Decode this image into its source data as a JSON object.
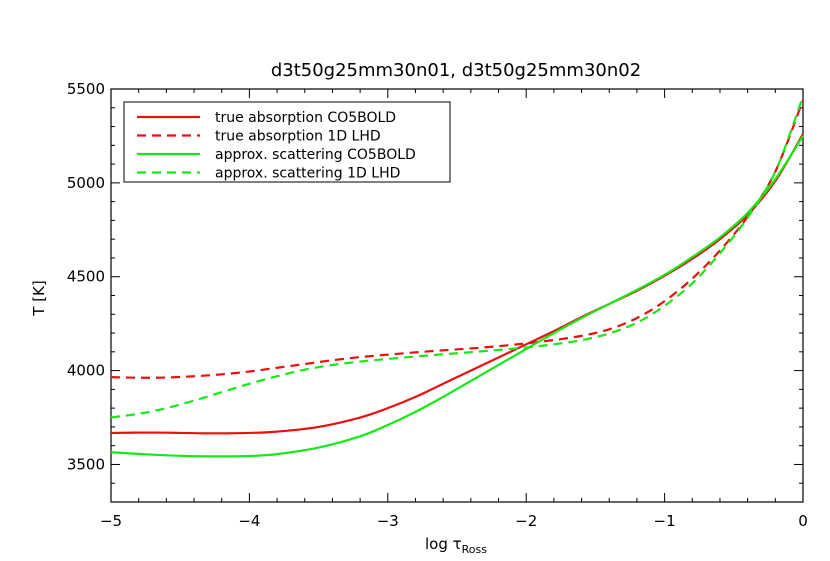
{
  "chart_data": {
    "type": "line",
    "title": "d3t50g25mm30n01, d3t50g25mm30n02",
    "xlabel": "log τ",
    "xlabel_sub": "Ross",
    "ylabel": "T [K]",
    "xlim": [
      -5,
      0
    ],
    "ylim": [
      3300,
      5500
    ],
    "xticks": [
      -5,
      -4,
      -3,
      -2,
      -1,
      0
    ],
    "xtick_labels": [
      "−5",
      "−4",
      "−3",
      "−2",
      "−1",
      "0"
    ],
    "yticks": [
      3500,
      4000,
      4500,
      5000,
      5500
    ],
    "ytick_labels": [
      "3500",
      "4000",
      "4500",
      "5000",
      "5500"
    ],
    "grid": false,
    "legend_position": "top-left",
    "colors": {
      "red": "#e81010",
      "green": "#18e818"
    },
    "series": [
      {
        "name": "true absorption CO5BOLD",
        "color": "#e81010",
        "dash": "solid",
        "x": [
          -5.0,
          -4.7,
          -4.5,
          -4.3,
          -4.0,
          -3.8,
          -3.5,
          -3.2,
          -3.0,
          -2.8,
          -2.6,
          -2.4,
          -2.2,
          -2.0,
          -1.8,
          -1.6,
          -1.4,
          -1.2,
          -1.0,
          -0.8,
          -0.6,
          -0.4,
          -0.2,
          0.0
        ],
        "y": [
          3668,
          3670,
          3668,
          3666,
          3668,
          3675,
          3700,
          3750,
          3800,
          3860,
          3930,
          4000,
          4070,
          4140,
          4210,
          4285,
          4355,
          4425,
          4505,
          4595,
          4700,
          4830,
          5010,
          5260
        ]
      },
      {
        "name": "true absorption 1D LHD",
        "color": "#e81010",
        "dash": "dashed",
        "x": [
          -5.0,
          -4.8,
          -4.6,
          -4.4,
          -4.2,
          -4.0,
          -3.8,
          -3.6,
          -3.4,
          -3.2,
          -3.0,
          -2.8,
          -2.6,
          -2.4,
          -2.2,
          -2.0,
          -1.8,
          -1.6,
          -1.4,
          -1.2,
          -1.0,
          -0.8,
          -0.6,
          -0.4,
          -0.2,
          0.0
        ],
        "y": [
          3965,
          3962,
          3963,
          3970,
          3980,
          3995,
          4015,
          4035,
          4055,
          4072,
          4085,
          4097,
          4108,
          4118,
          4130,
          4145,
          4163,
          4185,
          4220,
          4280,
          4370,
          4490,
          4640,
          4820,
          5060,
          5440
        ]
      },
      {
        "name": "approx. scattering CO5BOLD",
        "color": "#18e818",
        "dash": "solid",
        "x": [
          -5.0,
          -4.7,
          -4.5,
          -4.3,
          -4.0,
          -3.8,
          -3.5,
          -3.2,
          -3.0,
          -2.8,
          -2.6,
          -2.4,
          -2.2,
          -2.0,
          -1.8,
          -1.6,
          -1.4,
          -1.2,
          -1.0,
          -0.8,
          -0.6,
          -0.4,
          -0.2,
          0.0
        ],
        "y": [
          3565,
          3552,
          3546,
          3543,
          3545,
          3555,
          3590,
          3650,
          3710,
          3780,
          3860,
          3945,
          4030,
          4115,
          4200,
          4280,
          4355,
          4430,
          4510,
          4605,
          4710,
          4840,
          5020,
          5250
        ]
      },
      {
        "name": "approx. scattering 1D LHD",
        "color": "#18e818",
        "dash": "dashed",
        "x": [
          -5.0,
          -4.8,
          -4.6,
          -4.4,
          -4.2,
          -4.0,
          -3.8,
          -3.6,
          -3.4,
          -3.2,
          -3.0,
          -2.8,
          -2.6,
          -2.4,
          -2.2,
          -2.0,
          -1.8,
          -1.6,
          -1.4,
          -1.2,
          -1.0,
          -0.8,
          -0.6,
          -0.4,
          -0.2,
          0.0
        ],
        "y": [
          3750,
          3770,
          3800,
          3840,
          3885,
          3930,
          3970,
          4005,
          4030,
          4048,
          4062,
          4075,
          4087,
          4098,
          4110,
          4123,
          4140,
          4162,
          4198,
          4255,
          4345,
          4465,
          4625,
          4815,
          5060,
          5460
        ]
      }
    ]
  }
}
